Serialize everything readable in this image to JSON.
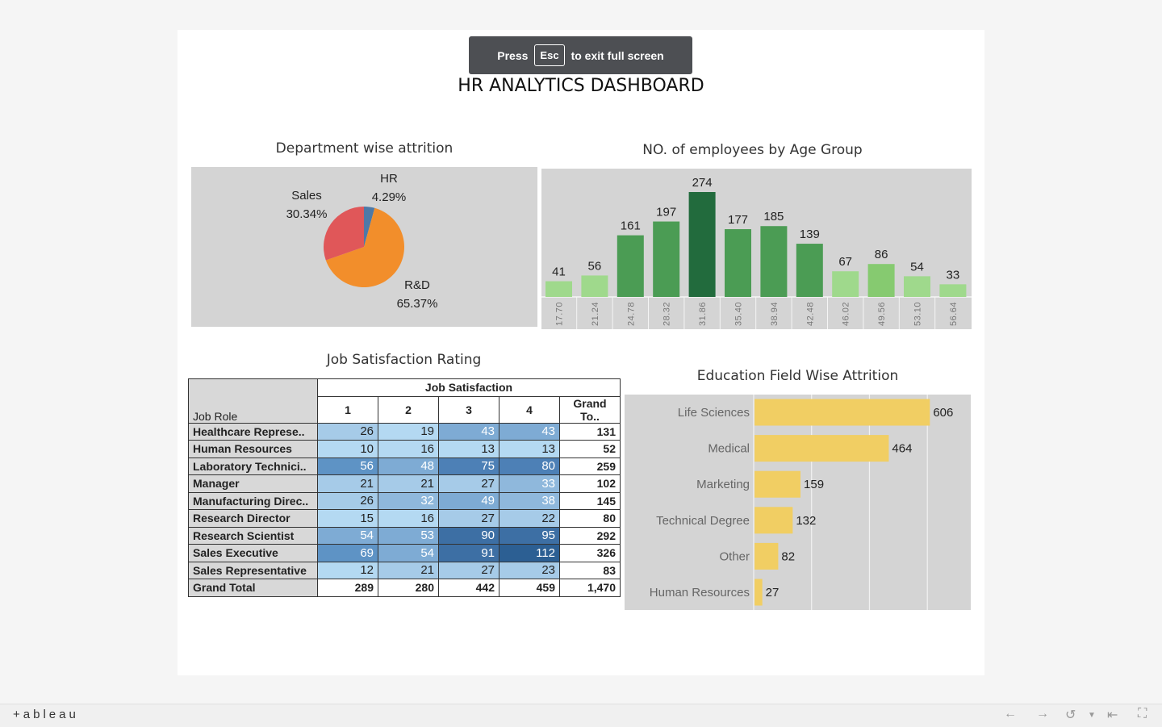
{
  "fullscreen_banner": {
    "press": "Press",
    "key": "Esc",
    "message": "to exit full screen"
  },
  "dashboard_title": "HR ANALYTICS DASHBOARD",
  "footer": {
    "brand": "+ableau"
  },
  "colors": {
    "sales": "#e05759",
    "rnd": "#f28e2b",
    "hr": "#4e79a7",
    "edu_bar": "#f1ce63",
    "panel_bg": "#d4d4d4"
  },
  "chart_data": [
    {
      "type": "pie",
      "title": "Department wise attrition",
      "labels": [
        "Sales",
        "R&D",
        "HR"
      ],
      "values": [
        30.34,
        65.37,
        4.29
      ],
      "value_labels": [
        "30.34%",
        "65.37%",
        "4.29%"
      ]
    },
    {
      "type": "bar",
      "title": "NO. of employees by Age Group",
      "categories": [
        "17.70",
        "21.24",
        "24.78",
        "28.32",
        "31.86",
        "35.40",
        "38.94",
        "42.48",
        "46.02",
        "49.56",
        "53.10",
        "56.64"
      ],
      "values": [
        41,
        56,
        161,
        197,
        274,
        177,
        185,
        139,
        67,
        86,
        54,
        33
      ]
    },
    {
      "type": "table",
      "title": "Job Satisfaction Rating",
      "row_header": "Job Role",
      "column_group": "Job Satisfaction",
      "columns": [
        "1",
        "2",
        "3",
        "4",
        "Grand To.."
      ],
      "rows": [
        {
          "label": "Healthcare Represe..",
          "values": [
            26,
            19,
            43,
            43
          ],
          "total": "131"
        },
        {
          "label": "Human Resources",
          "values": [
            10,
            16,
            13,
            13
          ],
          "total": "52"
        },
        {
          "label": "Laboratory Technici..",
          "values": [
            56,
            48,
            75,
            80
          ],
          "total": "259"
        },
        {
          "label": "Manager",
          "values": [
            21,
            21,
            27,
            33
          ],
          "total": "102"
        },
        {
          "label": "Manufacturing Direc..",
          "values": [
            26,
            32,
            49,
            38
          ],
          "total": "145"
        },
        {
          "label": "Research Director",
          "values": [
            15,
            16,
            27,
            22
          ],
          "total": "80"
        },
        {
          "label": "Research Scientist",
          "values": [
            54,
            53,
            90,
            95
          ],
          "total": "292"
        },
        {
          "label": "Sales Executive",
          "values": [
            69,
            54,
            91,
            112
          ],
          "total": "326"
        },
        {
          "label": "Sales Representative",
          "values": [
            12,
            21,
            27,
            23
          ],
          "total": "83"
        }
      ],
      "grand_total": {
        "label": "Grand Total",
        "values": [
          "289",
          "280",
          "442",
          "459"
        ],
        "total": "1,470"
      }
    },
    {
      "type": "bar",
      "orientation": "horizontal",
      "title": "Education Field Wise Attrition",
      "categories": [
        "Life Sciences",
        "Medical",
        "Marketing",
        "Technical Degree",
        "Other",
        "Human Resources"
      ],
      "values": [
        606,
        464,
        159,
        132,
        82,
        27
      ],
      "xlim": [
        0,
        750
      ]
    }
  ]
}
